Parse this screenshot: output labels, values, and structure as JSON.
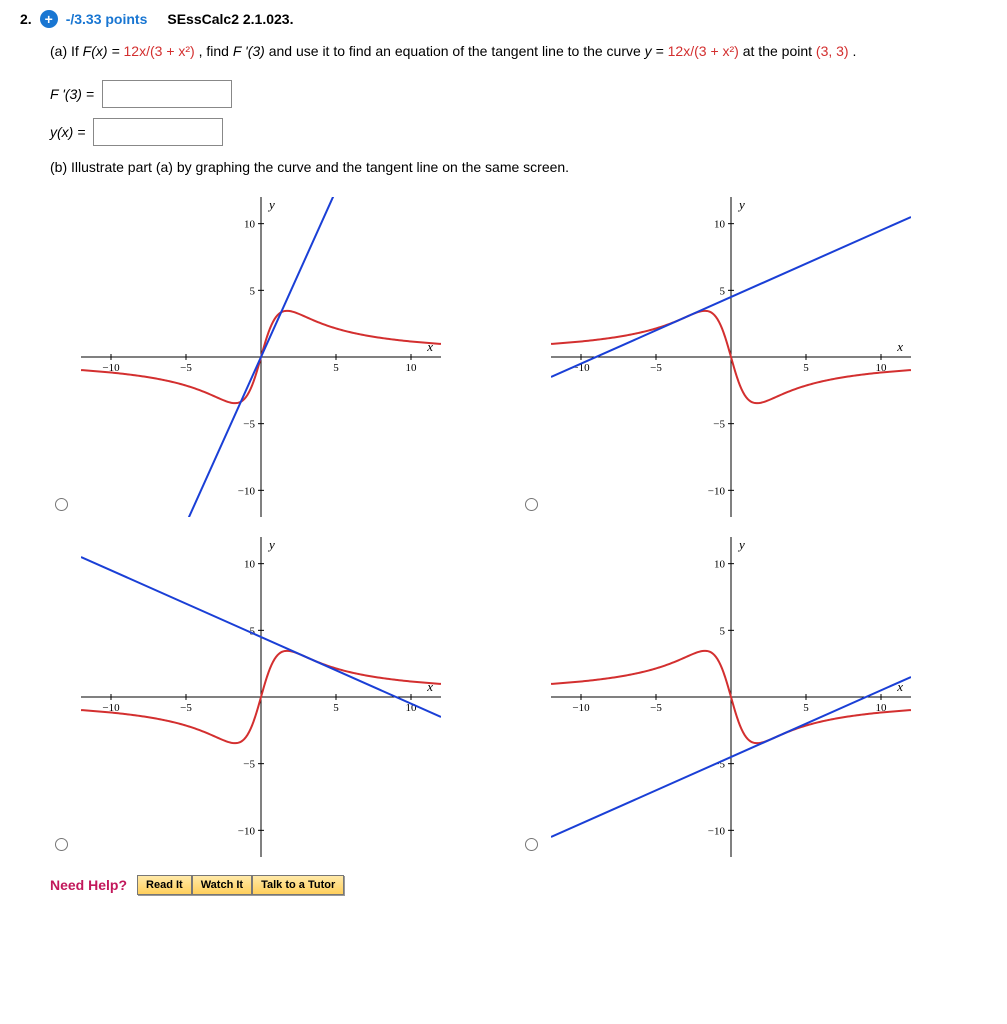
{
  "header": {
    "question_number": "2.",
    "points": "-/3.33 points",
    "source": "SEssCalc2 2.1.023."
  },
  "partA": {
    "label": "(a) If ",
    "func": "F(x) = ",
    "expr": "12x/(3 + x²)",
    "mid1": ",  find ",
    "fprime": "F '(3)",
    "mid2": " and use it to find an equation of the tangent line to the curve ",
    "yexpr_lhs": "y = ",
    "yexpr_rhs": "12x/(3 + x²)",
    "mid3": " at the point ",
    "pt": "(3, 3)",
    "end": ".",
    "input1_label": "F '(3) =",
    "input2_label": "y(x)   ="
  },
  "partB": {
    "text": "(b) Illustrate part (a) by graphing the curve and the tangent line on the same screen."
  },
  "graph_style": {
    "curve_color": "#d32f2f",
    "line_color": "#1a3fd6",
    "axis_color": "#000",
    "xlim": [
      -12,
      12
    ],
    "ylim": [
      -12,
      12
    ],
    "ticks": [
      -10,
      -5,
      5,
      10
    ],
    "xlabel": "x",
    "ylabel": "y"
  },
  "graphs": [
    {
      "tangent_slope": 2.5,
      "tangent_intercept": 0,
      "curve_reflect": false
    },
    {
      "tangent_slope": 0.5,
      "tangent_intercept": 4.5,
      "curve_reflect": true
    },
    {
      "tangent_slope": -0.5,
      "tangent_intercept": 4.5,
      "curve_reflect": false
    },
    {
      "tangent_slope": 0.5,
      "tangent_intercept": -4.5,
      "curve_reflect": true,
      "curve_reflect_x": true
    }
  ],
  "help": {
    "label": "Need Help?",
    "buttons": [
      "Read It",
      "Watch It",
      "Talk to a Tutor"
    ]
  }
}
